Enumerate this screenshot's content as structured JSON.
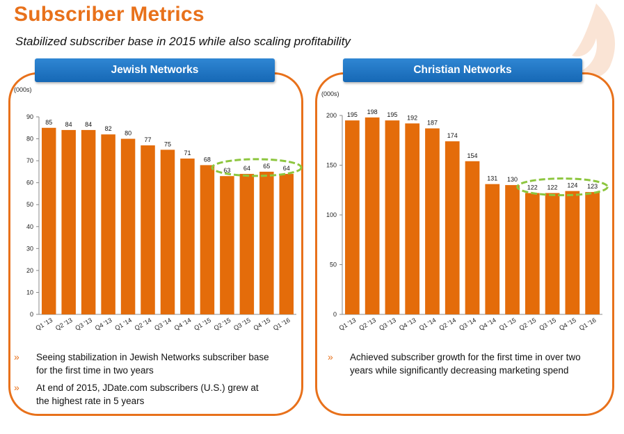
{
  "title": "Subscriber Metrics",
  "subtitle": "Stabilized subscriber base in 2015 while also scaling profitability",
  "colors": {
    "accent": "#e8711b",
    "bar": "#e46c0a",
    "header": "#1f73c2",
    "highlight": "#8dc63f"
  },
  "panels": {
    "jewish": {
      "header": "Jewish Networks",
      "bullet_marker": "»",
      "bullets": [
        "Seeing stabilization in Jewish Networks subscriber base for the first time in two years",
        "At end of 2015, JDate.com subscribers (U.S.) grew at the highest rate in 5 years"
      ]
    },
    "christian": {
      "header": "Christian Networks",
      "bullet_marker": "»",
      "bullets": [
        "Achieved subscriber growth for the first time in over two years while significantly decreasing marketing spend"
      ]
    }
  },
  "chart_data": [
    {
      "type": "bar",
      "name": "jewish",
      "title": "",
      "ylabel": "(000s)",
      "categories": [
        "Q1 '13",
        "Q2 '13",
        "Q3 '13",
        "Q4 '13",
        "Q1 '14",
        "Q2 '14",
        "Q3 '14",
        "Q4 '14",
        "Q1 '15",
        "Q2 '15",
        "Q3 '15",
        "Q4 '15",
        "Q1 '16"
      ],
      "values": [
        85,
        84,
        84,
        82,
        80,
        77,
        75,
        71,
        68,
        63,
        64,
        65,
        64
      ],
      "ylim": [
        0,
        90
      ],
      "yticks": [
        0,
        10,
        20,
        30,
        40,
        50,
        60,
        70,
        80,
        90
      ],
      "highlight_categories": [
        "Q2 '15",
        "Q3 '15",
        "Q4 '15",
        "Q1 '16"
      ],
      "grid": false,
      "legend": "none"
    },
    {
      "type": "bar",
      "name": "christian",
      "title": "",
      "ylabel": "(000s)",
      "categories": [
        "Q1 '13",
        "Q2 '13",
        "Q3 '13",
        "Q4 '13",
        "Q1 '14",
        "Q2 '14",
        "Q3 '14",
        "Q4 '14",
        "Q1 '15",
        "Q2 '15",
        "Q3 '15",
        "Q4 '15",
        "Q1 '16"
      ],
      "values": [
        195,
        198,
        195,
        192,
        187,
        174,
        154,
        131,
        130,
        122,
        122,
        124,
        123
      ],
      "ylim": [
        0,
        200
      ],
      "yticks": [
        0,
        50,
        100,
        150,
        200
      ],
      "highlight_categories": [
        "Q2 '15",
        "Q3 '15",
        "Q4 '15",
        "Q1 '16"
      ],
      "grid": false,
      "legend": "none"
    }
  ]
}
